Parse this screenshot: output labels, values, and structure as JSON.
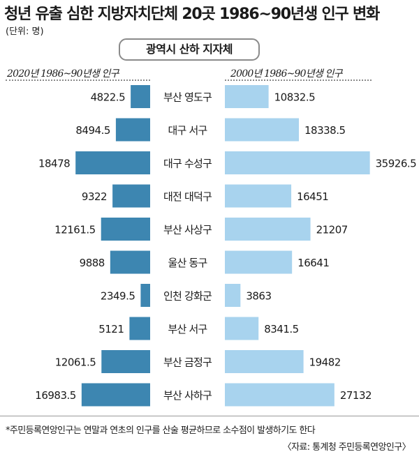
{
  "header": {
    "title": "청년 유출 심한 지방자치단체 20곳 1986~90년생 인구 변화",
    "unit": "(단위: 명)",
    "category_box": "광역시 산하 지자체",
    "left_series_label": "2020년 1986~90년생 인구",
    "right_series_label": "2000년 1986~90년생 인구"
  },
  "colors": {
    "left_bar": "#3d86b1",
    "right_bar": "#a8d3ee"
  },
  "chart_data": {
    "type": "bar",
    "title": "청년 유출 심한 지방자치단체 20곳 1986~90년생 인구 변화",
    "unit": "명",
    "categories": [
      "부산 영도구",
      "대구 서구",
      "대구 수성구",
      "대전 대덕구",
      "부산 사상구",
      "울산 동구",
      "인천 강화군",
      "부산 서구",
      "부산 금정구",
      "부산 사하구"
    ],
    "series": [
      {
        "name": "2020년 1986~90년생 인구",
        "values": [
          4822.5,
          8494.5,
          18478,
          9322,
          12161.5,
          9888,
          2349.5,
          5121,
          12061.5,
          16983.5
        ]
      },
      {
        "name": "2000년 1986~90년생 인구",
        "values": [
          10832.5,
          18338.5,
          35926.5,
          16451,
          21207,
          16641,
          3863,
          8341.5,
          19482,
          27132
        ]
      }
    ],
    "value_labels": {
      "left": [
        "4822.5",
        "8494.5",
        "18478",
        "9322",
        "12161.5",
        "9888",
        "2349.5",
        "5121",
        "12061.5",
        "16983.5"
      ],
      "right": [
        "10832.5",
        "18338.5",
        "35926.5",
        "16451",
        "21207",
        "16641",
        "3863",
        "8341.5",
        "19482",
        "27132"
      ]
    },
    "layout": "butterfly"
  },
  "footer": {
    "note": "*주민등록연앙인구는 연말과 연초의 인구를 산술 평균하므로 소수점이 발생하기도 한다",
    "source": "〈자료: 통계청 주민등록연앙인구〉"
  }
}
